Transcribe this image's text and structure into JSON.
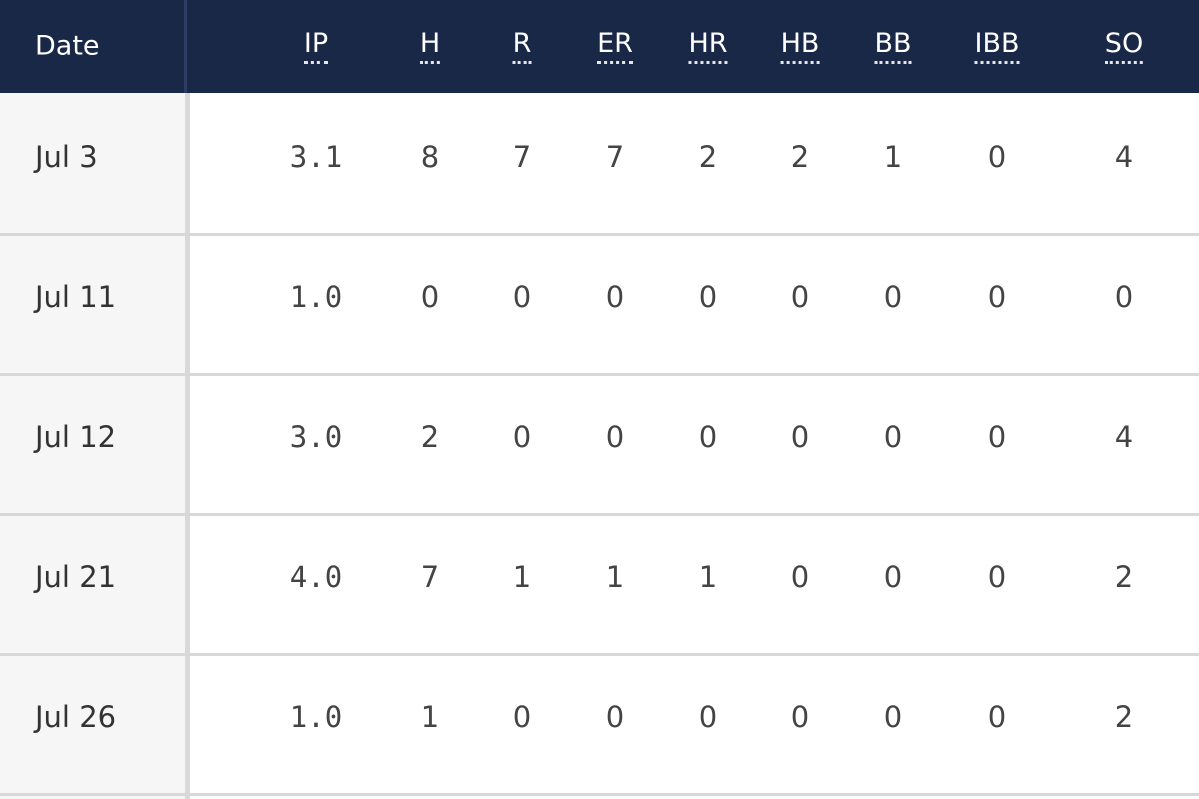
{
  "table": {
    "headers": [
      "Date",
      "IP",
      "H",
      "R",
      "ER",
      "HR",
      "HB",
      "BB",
      "IBB",
      "SO"
    ],
    "rows": [
      [
        "Jul 3",
        "3.1",
        8,
        7,
        7,
        2,
        2,
        1,
        0,
        4
      ],
      [
        "Jul 11",
        "1.0",
        0,
        0,
        0,
        0,
        0,
        0,
        0,
        0
      ],
      [
        "Jul 12",
        "3.0",
        2,
        0,
        0,
        0,
        0,
        0,
        0,
        4
      ],
      [
        "Jul 21",
        "4.0",
        7,
        1,
        1,
        1,
        0,
        0,
        0,
        2
      ],
      [
        "Jul 26",
        "1.0",
        1,
        0,
        0,
        0,
        0,
        0,
        0,
        2
      ]
    ]
  }
}
